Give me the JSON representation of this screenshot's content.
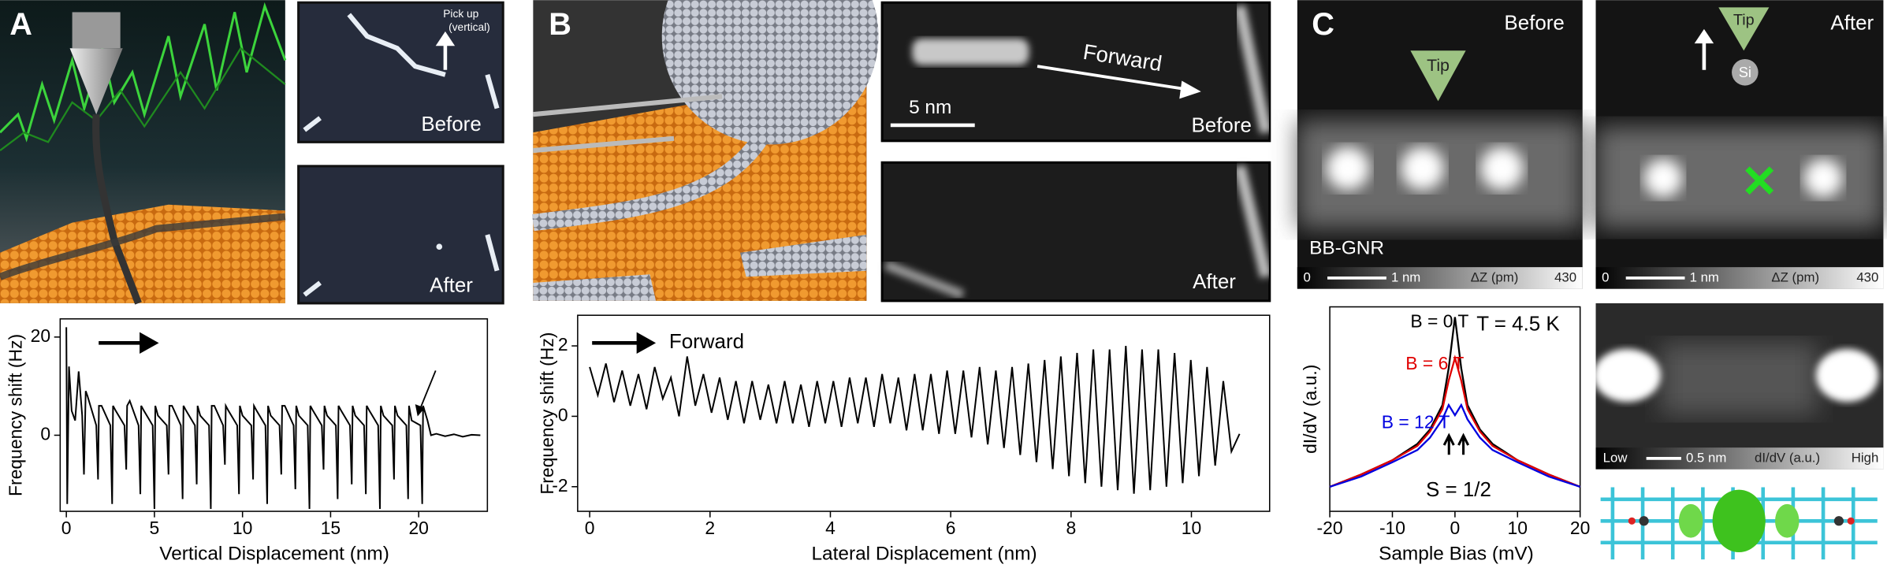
{
  "panels": {
    "A": {
      "label": "A",
      "image_top": {
        "note": "Pick up",
        "note2": "(vertical)",
        "caption": "Before"
      },
      "image_bottom": {
        "caption": "After"
      }
    },
    "B": {
      "label": "B",
      "image_top": {
        "arrow_label": "Forward",
        "scale": "5 nm",
        "caption": "Before"
      },
      "image_bottom": {
        "caption": "After"
      }
    },
    "C": {
      "label": "C",
      "image_left": {
        "caption": "Before",
        "tip": "Tip",
        "name": "BB-GNR",
        "cbar_min": "0",
        "scale": "1 nm",
        "cbar_label": "ΔZ (pm)",
        "cbar_max": "430"
      },
      "image_right": {
        "caption": "After",
        "tip": "Tip",
        "atom": "Si",
        "cbar_min": "0",
        "scale": "1 nm",
        "cbar_label": "ΔZ (pm)",
        "cbar_max": "430"
      },
      "image_map": {
        "cbar_min": "Low",
        "scale": "0.5 nm",
        "cbar_label": "dI/dV (a.u.)",
        "cbar_max": "High"
      }
    }
  },
  "chart_data": [
    {
      "type": "line",
      "xlabel": "Vertical Displacement (nm)",
      "ylabel": "Frequency shift (Hz)",
      "color": "#000000",
      "x": [
        0,
        0.05,
        0.15,
        0.3,
        0.5,
        0.7,
        0.9,
        1.0,
        1.1,
        1.2,
        1.7,
        1.8,
        1.85,
        2.0,
        2.5,
        2.6,
        2.65,
        2.8,
        3.3,
        3.4,
        3.45,
        3.6,
        4.1,
        4.2,
        4.25,
        4.4,
        4.9,
        5.0,
        5.05,
        5.2,
        5.7,
        5.8,
        5.85,
        6.0,
        6.5,
        6.6,
        6.65,
        6.8,
        7.3,
        7.4,
        7.45,
        7.6,
        8.1,
        8.2,
        8.25,
        8.4,
        8.9,
        9.0,
        9.05,
        9.2,
        9.7,
        9.8,
        9.85,
        10.0,
        10.5,
        10.6,
        10.65,
        10.8,
        11.3,
        11.4,
        11.45,
        11.6,
        12.1,
        12.2,
        12.25,
        12.4,
        12.9,
        13.0,
        13.05,
        13.2,
        13.7,
        13.8,
        13.85,
        14.0,
        14.5,
        14.6,
        14.65,
        14.8,
        15.3,
        15.4,
        15.45,
        15.6,
        16.1,
        16.2,
        16.25,
        16.4,
        16.9,
        17.0,
        17.05,
        17.2,
        17.7,
        17.8,
        17.85,
        18.0,
        18.5,
        18.6,
        18.65,
        18.8,
        19.3,
        19.4,
        19.45,
        19.6,
        20.1,
        20.2,
        20.25,
        20.5,
        20.7,
        21.0,
        21.5,
        22.0,
        22.5,
        23.0,
        23.5
      ],
      "values": [
        22,
        -14,
        14,
        5,
        3,
        13,
        4,
        -8,
        9,
        8,
        2,
        -9,
        6,
        6,
        2,
        -14,
        6,
        5,
        2,
        -7,
        6,
        7,
        2,
        -12,
        6,
        5,
        2,
        -15,
        6,
        4,
        2,
        -8,
        6,
        6,
        2,
        -13,
        6,
        5,
        2,
        -10,
        6,
        4,
        2,
        -15,
        6,
        6,
        2,
        -6,
        6,
        5,
        2,
        -12,
        6,
        4,
        2,
        -9,
        6,
        5,
        2,
        -14,
        6,
        4,
        2,
        -8,
        6,
        6,
        2,
        -11,
        6,
        4,
        2,
        -15,
        6,
        5,
        2,
        -7,
        6,
        4,
        2,
        -13,
        6,
        5,
        2,
        -10,
        6,
        4,
        2,
        -12,
        6,
        5,
        2,
        -15,
        6,
        4,
        2,
        -9,
        6,
        4,
        2,
        -13,
        6,
        3,
        2,
        -14,
        6,
        3,
        0,
        0.3,
        -0.2,
        0.2,
        -0.3,
        0.1,
        0
      ],
      "xlim": [
        -0.35,
        23.9
      ],
      "ylim": [
        -15.5,
        23.7
      ],
      "xticks": [
        0,
        5,
        10,
        15,
        20
      ],
      "yticks": [
        0,
        20
      ]
    },
    {
      "type": "line",
      "xlabel": "Lateral Displacement (nm)",
      "ylabel": "Frequency shift (Hz)",
      "color": "#000000",
      "annotations": [
        "Forward"
      ],
      "x": [
        0,
        0.135,
        0.27,
        0.405,
        0.54,
        0.675,
        0.81,
        0.945,
        1.08,
        1.215,
        1.35,
        1.485,
        1.62,
        1.755,
        1.89,
        2.025,
        2.16,
        2.295,
        2.43,
        2.565,
        2.7,
        2.835,
        2.97,
        3.105,
        3.24,
        3.375,
        3.51,
        3.645,
        3.78,
        3.915,
        4.05,
        4.185,
        4.32,
        4.455,
        4.59,
        4.725,
        4.86,
        4.995,
        5.13,
        5.265,
        5.4,
        5.535,
        5.67,
        5.805,
        5.94,
        6.075,
        6.21,
        6.345,
        6.48,
        6.615,
        6.75,
        6.885,
        7.02,
        7.155,
        7.29,
        7.425,
        7.56,
        7.695,
        7.83,
        7.965,
        8.1,
        8.235,
        8.37,
        8.505,
        8.64,
        8.775,
        8.91,
        9.045,
        9.18,
        9.315,
        9.45,
        9.585,
        9.72,
        9.855,
        9.99,
        10.125,
        10.26,
        10.395,
        10.53,
        10.665,
        10.8
      ],
      "values": [
        1.4,
        0.6,
        1.5,
        0.4,
        1.3,
        0.3,
        1.2,
        0.2,
        1.4,
        0.5,
        1.1,
        0.0,
        1.7,
        0.3,
        1.2,
        0.1,
        1.1,
        -0.1,
        1.0,
        -0.2,
        1.0,
        -0.1,
        0.9,
        -0.2,
        1.0,
        -0.2,
        0.9,
        -0.3,
        1.0,
        -0.2,
        1.0,
        -0.3,
        1.1,
        -0.2,
        1.1,
        -0.3,
        1.2,
        -0.2,
        1.1,
        -0.4,
        1.2,
        -0.4,
        1.2,
        -0.5,
        1.3,
        -0.5,
        1.3,
        -0.6,
        1.4,
        -0.8,
        1.3,
        -0.9,
        1.4,
        -1.1,
        1.5,
        -1.3,
        1.6,
        -1.5,
        1.7,
        -1.7,
        1.8,
        -1.9,
        1.9,
        -2.0,
        1.9,
        -2.1,
        2.0,
        -2.2,
        1.9,
        -2.1,
        1.9,
        -2.0,
        1.8,
        -1.9,
        1.6,
        -1.7,
        1.4,
        -1.4,
        1.0,
        -1.0,
        -0.5
      ],
      "xlim": [
        -0.2,
        11.3
      ],
      "ylim": [
        -2.7,
        2.87
      ],
      "xticks": [
        0,
        2,
        4,
        6,
        8,
        10
      ],
      "yticks": [
        -2,
        0,
        2
      ]
    },
    {
      "type": "line",
      "xlabel": "Sample Bias (mV)",
      "ylabel": "dI/dV (a.u.)",
      "annotations": [
        "T = 4.5 K",
        "S = 1/2"
      ],
      "x": [
        -20,
        -15,
        -10,
        -6,
        -4,
        -2,
        -1,
        0,
        1,
        2,
        4,
        6,
        10,
        15,
        20
      ],
      "series": [
        {
          "name": "B = 0 T",
          "color": "#000000",
          "values": [
            0.12,
            0.18,
            0.25,
            0.33,
            0.4,
            0.52,
            0.7,
            0.95,
            0.7,
            0.52,
            0.4,
            0.33,
            0.25,
            0.18,
            0.12
          ]
        },
        {
          "name": "B = 6 T",
          "color": "#e00000",
          "values": [
            0.12,
            0.18,
            0.25,
            0.32,
            0.39,
            0.5,
            0.64,
            0.75,
            0.64,
            0.5,
            0.39,
            0.32,
            0.25,
            0.18,
            0.12
          ]
        },
        {
          "name": "B = 12 T",
          "color": "#0000e0",
          "values": [
            0.12,
            0.17,
            0.24,
            0.3,
            0.36,
            0.45,
            0.52,
            0.47,
            0.52,
            0.45,
            0.36,
            0.3,
            0.24,
            0.17,
            0.12
          ]
        }
      ],
      "xlim": [
        -20,
        20
      ],
      "ylim": [
        0,
        1.0
      ],
      "xticks": [
        -20,
        -10,
        0,
        10,
        20
      ]
    }
  ]
}
